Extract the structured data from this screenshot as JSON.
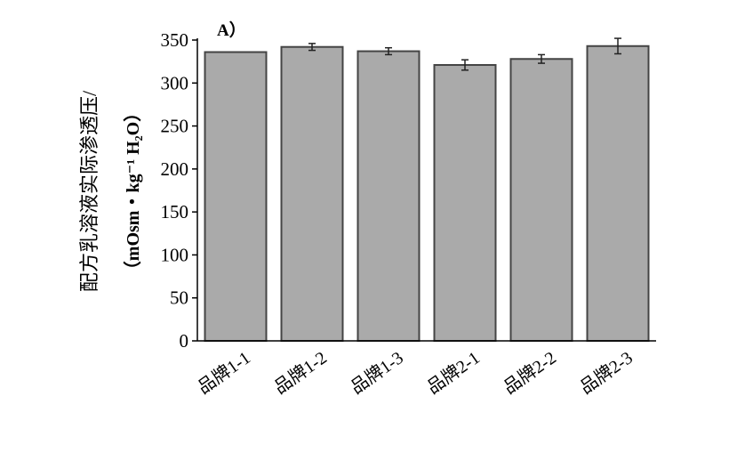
{
  "chart_data": {
    "type": "bar",
    "panel_label": "A）",
    "ylabel_line1": "配方乳溶液实际渗透压/",
    "ylabel_line2": "（mOsm・kg⁻¹ H₂O）",
    "xlabel": "",
    "categories": [
      "品牌1-1",
      "品牌1-2",
      "品牌1-3",
      "品牌2-1",
      "品牌2-2",
      "品牌2-3"
    ],
    "values": [
      336,
      342,
      337,
      321,
      328,
      343
    ],
    "errors": [
      0,
      4,
      4,
      6,
      5,
      9
    ],
    "ylim": [
      0,
      350
    ],
    "yticks": [
      0,
      50,
      100,
      150,
      200,
      250,
      300,
      350
    ],
    "grid": false,
    "bar_color": "#aaaaaa",
    "bar_edge_color": "#444444"
  }
}
